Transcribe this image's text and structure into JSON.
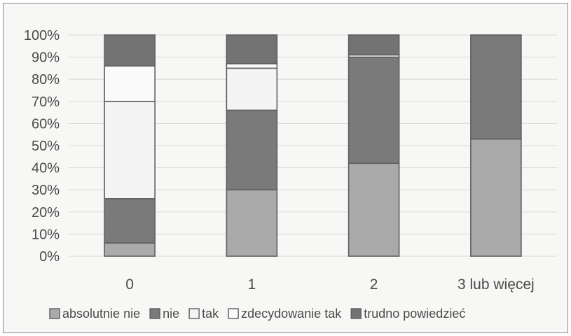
{
  "chart_data": {
    "type": "bar",
    "stacked": true,
    "normalized": true,
    "categories": [
      "0",
      "1",
      "2",
      "3 lub więcej"
    ],
    "series": [
      {
        "name": "absolutnie nie",
        "values": [
          6,
          30,
          42,
          53
        ],
        "color": "#aaaaaa"
      },
      {
        "name": "nie",
        "values": [
          20,
          36,
          48,
          47
        ],
        "color": "#7a7a7a"
      },
      {
        "name": "tak",
        "values": [
          44,
          19,
          0,
          0
        ],
        "color": "#f4f4f4"
      },
      {
        "name": "zdecydowanie tak",
        "values": [
          16,
          2,
          1,
          0
        ],
        "color": "#fafafa"
      },
      {
        "name": "trudno powiedzieć",
        "values": [
          14,
          13,
          9,
          0
        ],
        "color": "#737373"
      }
    ],
    "yticks": [
      "0%",
      "10%",
      "20%",
      "30%",
      "40%",
      "50%",
      "60%",
      "70%",
      "80%",
      "90%",
      "100%"
    ],
    "ylim": [
      0,
      100
    ],
    "grid": true,
    "legend_position": "bottom",
    "xlabel": "",
    "ylabel": ""
  }
}
